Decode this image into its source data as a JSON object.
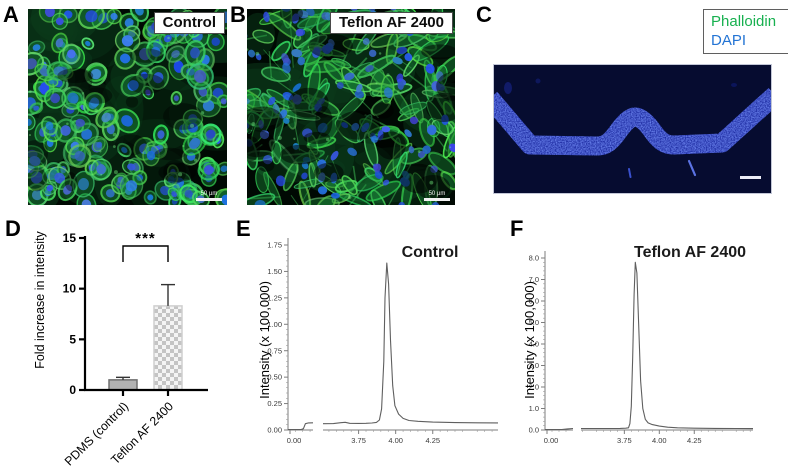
{
  "figure": {
    "panels": {
      "A": {
        "label": "A",
        "tag": "Control",
        "scale_bar": "50 µm"
      },
      "B": {
        "label": "B",
        "tag": "Teflon AF 2400",
        "scale_bar": "50 µm"
      },
      "C": {
        "label": "C",
        "legend": [
          {
            "text": "Phalloidin",
            "color": "#17b04f"
          },
          {
            "text": "DAPI",
            "color": "#2374d4"
          }
        ],
        "channel_color": "#2e44cc",
        "channel_base_color": "#17249b",
        "background_color": "#060c30"
      },
      "D": {
        "label": "D"
      },
      "E": {
        "label": "E"
      },
      "F": {
        "label": "F"
      }
    },
    "stain_colors": {
      "phalloidin": "#3ed45c",
      "dapi": "#2b5fd8"
    }
  },
  "chart_data": [
    {
      "id": "D",
      "type": "bar",
      "categories": [
        "PDMS (control)",
        "Teflon AF 2400"
      ],
      "values": [
        1.0,
        8.3
      ],
      "errors_plus": [
        0.25,
        2.1
      ],
      "ylabel": "Fold increase in intensity",
      "ylim": [
        0,
        15
      ],
      "yticks": [
        0,
        5,
        10,
        15
      ],
      "significance": "***",
      "styles": {
        "bar1_fill": "#b2b2b2",
        "bar1_stroke": "#707070",
        "checker_fg": "#c4c4c4",
        "checker_bg": "#f4f4f4",
        "checker_stroke": "#cfcfcf"
      }
    },
    {
      "id": "E",
      "type": "line",
      "title": "Control",
      "ylabel": "Intensity (x 100,000)",
      "ylim": [
        0,
        1.75
      ],
      "yticks": [
        0,
        0.25,
        0.5,
        0.75,
        1,
        1.25,
        1.5,
        1.75
      ],
      "ytick_decimals": 2,
      "axis_break": true,
      "x_left_range": [
        0,
        0.17
      ],
      "x_right_range": [
        3.51,
        4.69
      ],
      "xticks_left": [
        0
      ],
      "xticks_right": [
        3.75,
        4.0,
        4.25
      ],
      "xtick_decimals": 2,
      "peak": {
        "x": 3.94,
        "y": 1.58
      },
      "series_left": [
        [
          0,
          0.005
        ],
        [
          0.09,
          0.005
        ],
        [
          0.105,
          0.012
        ],
        [
          0.118,
          0.06
        ],
        [
          0.14,
          0.067
        ],
        [
          0.17,
          0.068
        ]
      ],
      "series_right": [
        [
          3.51,
          0.06
        ],
        [
          3.58,
          0.061
        ],
        [
          3.63,
          0.069
        ],
        [
          3.66,
          0.073
        ],
        [
          3.69,
          0.063
        ],
        [
          3.75,
          0.062
        ],
        [
          3.8,
          0.063
        ],
        [
          3.84,
          0.066
        ],
        [
          3.87,
          0.072
        ],
        [
          3.89,
          0.095
        ],
        [
          3.905,
          0.2
        ],
        [
          3.92,
          0.65
        ],
        [
          3.928,
          1.25
        ],
        [
          3.94,
          1.58
        ],
        [
          3.952,
          1.38
        ],
        [
          3.965,
          0.85
        ],
        [
          3.98,
          0.42
        ],
        [
          3.995,
          0.23
        ],
        [
          4.02,
          0.15
        ],
        [
          4.05,
          0.11
        ],
        [
          4.09,
          0.09
        ],
        [
          4.15,
          0.082
        ],
        [
          4.25,
          0.075
        ],
        [
          4.4,
          0.07
        ],
        [
          4.55,
          0.068
        ],
        [
          4.69,
          0.067
        ]
      ]
    },
    {
      "id": "F",
      "type": "line",
      "title": "Teflon AF 2400",
      "ylabel": "Intensity (x 100,000)",
      "ylim": [
        0,
        8
      ],
      "yticks": [
        0,
        1,
        2,
        3,
        4,
        5,
        6,
        7,
        8
      ],
      "ytick_decimals": 1,
      "axis_break": true,
      "x_left_range": [
        0,
        0.2
      ],
      "x_right_range": [
        3.44,
        4.67
      ],
      "xticks_left": [
        0
      ],
      "xticks_right": [
        3.75,
        4.0,
        4.25
      ],
      "xtick_decimals": 2,
      "peak": {
        "x": 3.83,
        "y": 7.8
      },
      "series_left": [
        [
          0,
          0.02
        ],
        [
          0.12,
          0.022
        ],
        [
          0.16,
          0.05
        ],
        [
          0.2,
          0.068
        ]
      ],
      "series_right": [
        [
          3.44,
          0.07
        ],
        [
          3.55,
          0.07
        ],
        [
          3.65,
          0.072
        ],
        [
          3.72,
          0.076
        ],
        [
          3.76,
          0.082
        ],
        [
          3.78,
          0.1
        ],
        [
          3.79,
          0.3
        ],
        [
          3.8,
          1.1
        ],
        [
          3.81,
          3.4
        ],
        [
          3.82,
          6.3
        ],
        [
          3.828,
          7.8
        ],
        [
          3.84,
          7.3
        ],
        [
          3.852,
          5.0
        ],
        [
          3.866,
          2.3
        ],
        [
          3.882,
          1.0
        ],
        [
          3.9,
          0.5
        ],
        [
          3.92,
          0.33
        ],
        [
          3.95,
          0.25
        ],
        [
          4.0,
          0.18
        ],
        [
          4.06,
          0.13
        ],
        [
          4.13,
          0.1
        ],
        [
          4.25,
          0.085
        ],
        [
          4.4,
          0.075
        ],
        [
          4.55,
          0.07
        ],
        [
          4.67,
          0.065
        ]
      ]
    }
  ]
}
